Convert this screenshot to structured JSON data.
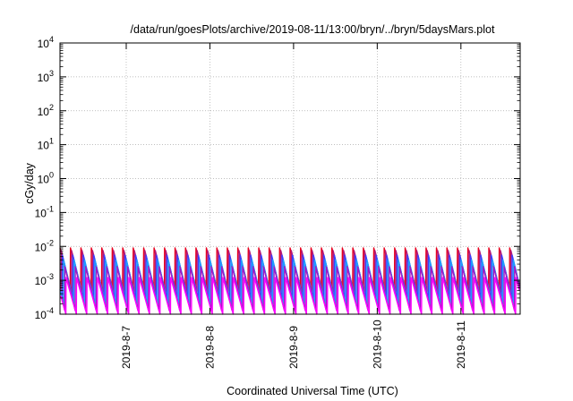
{
  "chart_data": {
    "type": "line",
    "title": "/data/run/goesPlots/archive/2019-08-11/13:00/bryn/../bryn/5daysMars.plot",
    "xlabel": "Coordinated Universal Time (UTC)",
    "ylabel": "cGy/day",
    "y_scale": "log",
    "ylim": [
      0.0001,
      10000
    ],
    "xlim": [
      "2019-08-06T05:00",
      "2019-08-11T17:00"
    ],
    "y_ticks": [
      {
        "base": "10",
        "exp": "-4"
      },
      {
        "base": "10",
        "exp": "-3"
      },
      {
        "base": "10",
        "exp": "-2"
      },
      {
        "base": "10",
        "exp": "-1"
      },
      {
        "base": "10",
        "exp": "0"
      },
      {
        "base": "10",
        "exp": "1"
      },
      {
        "base": "10",
        "exp": "2"
      },
      {
        "base": "10",
        "exp": "3"
      },
      {
        "base": "10",
        "exp": "4"
      }
    ],
    "x_ticks": [
      "2019-8-7",
      "2019-8-8",
      "2019-8-9",
      "2019-8-10",
      "2019-8-11"
    ],
    "grid": true,
    "legend": "none",
    "sawtooth_period_hours": 3,
    "series": [
      {
        "color": "#e8001e",
        "peak": 0.009,
        "trough": 0.0006,
        "phase_hours": 0.0
      },
      {
        "color": "#b2187a",
        "peak": 0.0075,
        "trough": 0.00045,
        "phase_hours": 0.35
      },
      {
        "color": "#3a40ff",
        "peak": 0.0055,
        "trough": 0.0003,
        "phase_hours": 0.7
      },
      {
        "color": "#1e9cff",
        "peak": 0.004,
        "trough": 0.0002,
        "phase_hours": 1.05
      },
      {
        "color": "#a018c8",
        "peak": 0.0025,
        "trough": 0.00013,
        "phase_hours": 1.4
      },
      {
        "color": "#ff00ff",
        "peak": 0.0012,
        "trough": 0.0001,
        "phase_hours": 1.75
      }
    ]
  }
}
